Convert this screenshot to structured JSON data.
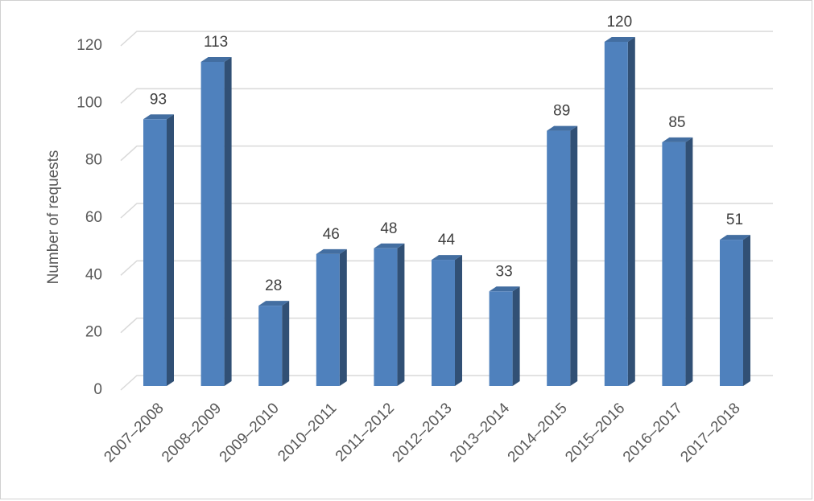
{
  "chart_data": {
    "type": "bar",
    "y_label": "Number of requests",
    "categories": [
      "2007–2008",
      "2008–2009",
      "2009–2010",
      "2010–2011",
      "2011–2012",
      "2012–2013",
      "2013–2014",
      "2014–2015",
      "2015–2016",
      "2016–2017",
      "2017–2018"
    ],
    "values": [
      93,
      113,
      28,
      46,
      48,
      44,
      33,
      89,
      120,
      85,
      51
    ],
    "color": "#4f81bd",
    "ylim": [
      0,
      120
    ],
    "yticks": [
      0,
      20,
      40,
      60,
      80,
      100,
      120
    ],
    "grid": true
  }
}
